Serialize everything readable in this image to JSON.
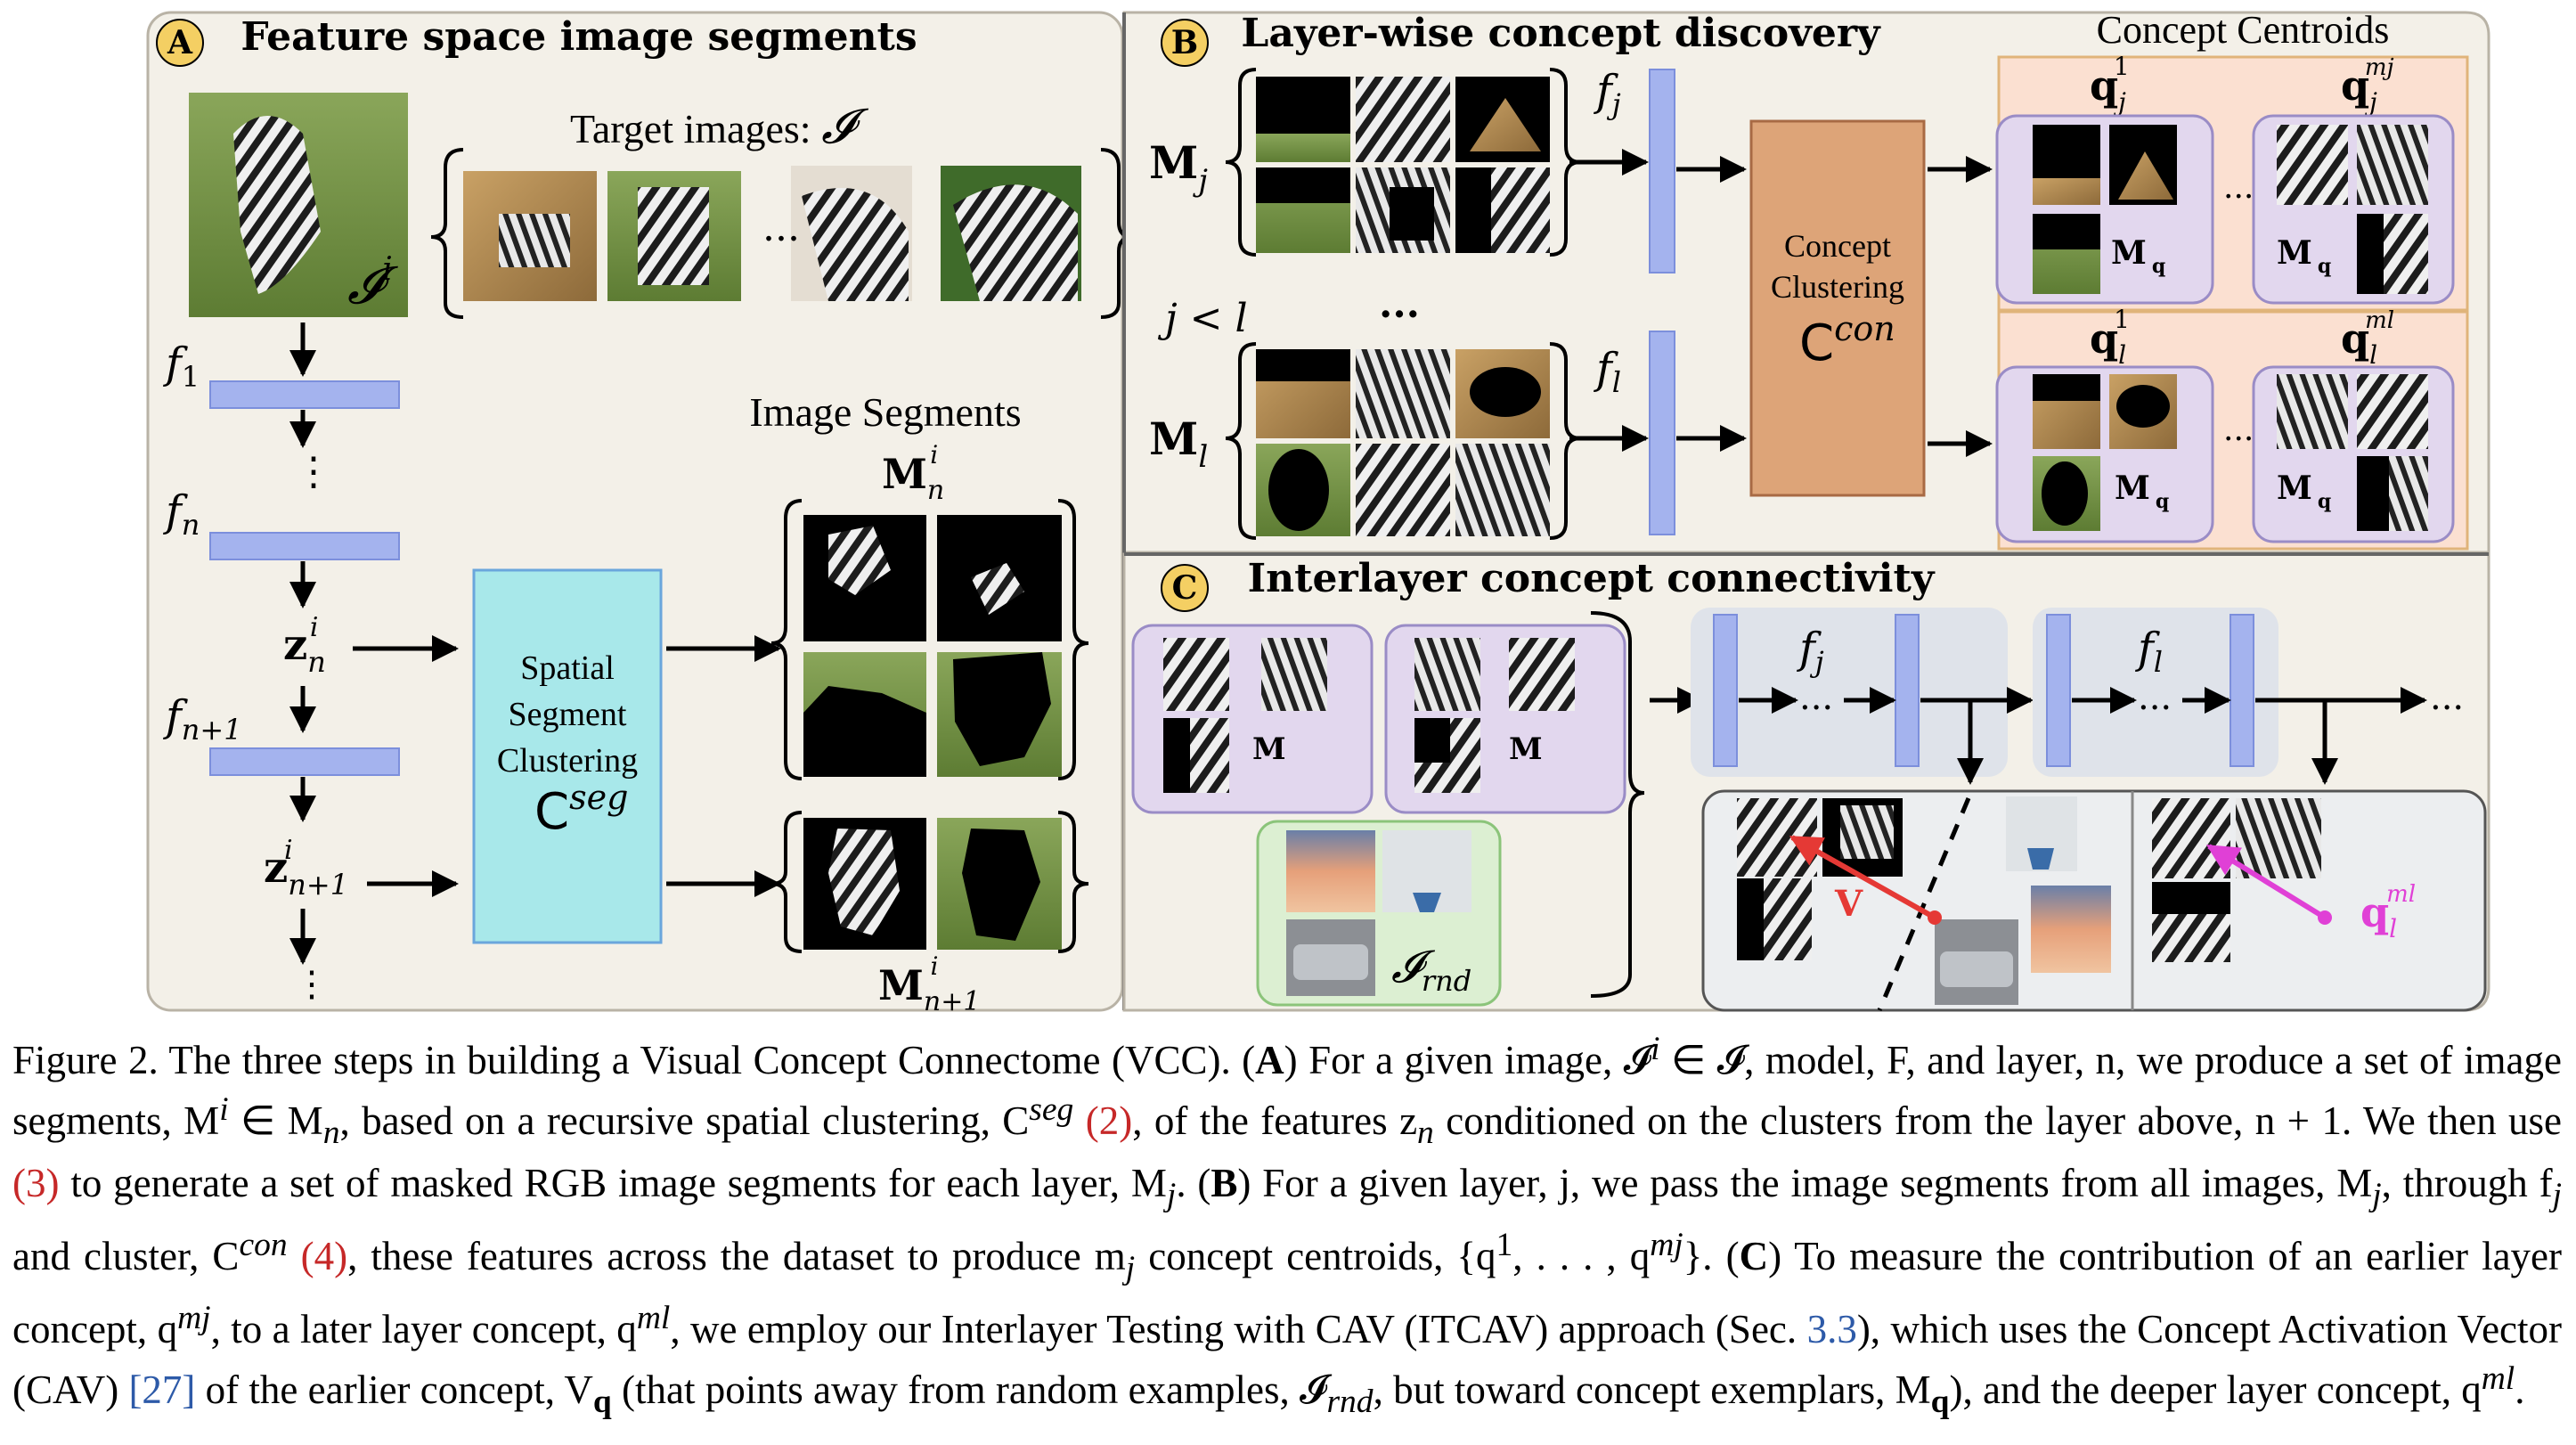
{
  "panels": {
    "a": {
      "letter": "A",
      "title": "Feature space image segments"
    },
    "b": {
      "letter": "B",
      "title": "Layer-wise concept discovery"
    },
    "c": {
      "letter": "C",
      "title": "Interlayer concept connectivity"
    }
  },
  "panel_a": {
    "target_label": "Target images: ",
    "target_symbol": "𝓘",
    "img_label": "𝓘",
    "img_sup": "i",
    "ellipsis": "...",
    "layers": [
      "f",
      "f",
      "f"
    ],
    "layer_subs": [
      "1",
      "n",
      "n+1"
    ],
    "z_labels": [
      "z",
      "z"
    ],
    "z_subs": [
      "n",
      "n+1"
    ],
    "z_sup": "i",
    "vdots": [
      "⋮",
      "⋮",
      "⋮"
    ],
    "clustering": [
      "Spatial",
      "Segment",
      "Clustering"
    ],
    "cseg": "C",
    "cseg_sup": "seg",
    "segments_title": "Image Segments",
    "m_top": "M",
    "m_top_sub": "n",
    "m_bot": "M",
    "m_bot_sub": "n+1",
    "m_sup": "i"
  },
  "panel_b": {
    "mj": "M",
    "mj_sub": "j",
    "ml": "M",
    "ml_sub": "l",
    "jl": "j < l",
    "dots": "...",
    "fj": "f",
    "fj_sub": "j",
    "fl": "f",
    "fl_sub": "l",
    "clustering": [
      "Concept",
      "Clustering"
    ],
    "ccon": "C",
    "ccon_sup": "con",
    "centroids_title": "Concept Centroids",
    "q_labels": [
      "q",
      "q",
      "q",
      "q"
    ],
    "q_subs": [
      "j",
      "j",
      "l",
      "l"
    ],
    "q_sups": [
      "1",
      "mj",
      "1",
      "ml"
    ],
    "mq": "M",
    "mq_subs": [
      "q",
      "q",
      "q",
      "q"
    ],
    "ellipsis": "..."
  },
  "panel_c": {
    "fj": "f",
    "fj_sub": "j",
    "fl": "f",
    "fl_sub": "l",
    "dots": "...",
    "mq": "M",
    "rnd": "𝓘",
    "rnd_sub": "rnd",
    "v": "V",
    "q": "q",
    "q_sub": "l",
    "q_sup": "ml"
  },
  "caption": {
    "figure": "Figure 2.",
    "text_1": "The three steps in building a Visual Concept Connectome (VCC). (",
    "bold_a": "A",
    "text_2": ") For a given image, 𝓘",
    "text_3": " ∈ 𝓘, model, F, and layer, n, we produce a set of image segments, M",
    "text_4": " ∈ M",
    "text_5": ", based on a recursive spatial clustering, C",
    "ref_2": "(2)",
    "text_6": ", of the features z",
    "text_7": " conditioned on the clusters from the layer above, n + 1. We then use ",
    "ref_3": "(3)",
    "text_8": " to generate a set of masked RGB image segments for each layer, M",
    "text_9": ". (",
    "bold_b": "B",
    "text_10": ") For a given layer, j, we pass the image segments from all images, M",
    "text_11": ", through f",
    "text_12": " and cluster, C",
    "ref_4": "(4)",
    "text_13": ", these features across the dataset to produce m",
    "text_14": " concept centroids, {q",
    "text_15": ", . . . , q",
    "text_16": "}. (",
    "bold_c": "C",
    "text_17": ") To measure the contribution of an earlier layer concept, q",
    "text_18": ", to a later layer concept, q",
    "text_19": ", we employ our Interlayer Testing with CAV (ITCAV) approach (Sec. ",
    "ref_sec": "3.3",
    "text_20": "), which uses the Concept Activation Vector (CAV) ",
    "ref_27": "[27]",
    "text_21": " of the earlier concept, V",
    "text_22": " (that points away from random examples, 𝓘",
    "text_23": ", but toward concept exemplars, M",
    "text_24": "), and the deeper layer concept, q",
    "text_25": "."
  },
  "colors": {
    "panel_bg": "#f3f0e8",
    "layer_blue": "#a4b3ee",
    "spatial_cyan": "#a8e8ea",
    "concept_orange": "#dda478",
    "centroid_bg": "#fbe0d1",
    "concept_purple": "#e2d7ee",
    "rnd_green": "#dcefd2",
    "red_arrow": "#e53935",
    "magenta_arrow": "#e040d6"
  }
}
